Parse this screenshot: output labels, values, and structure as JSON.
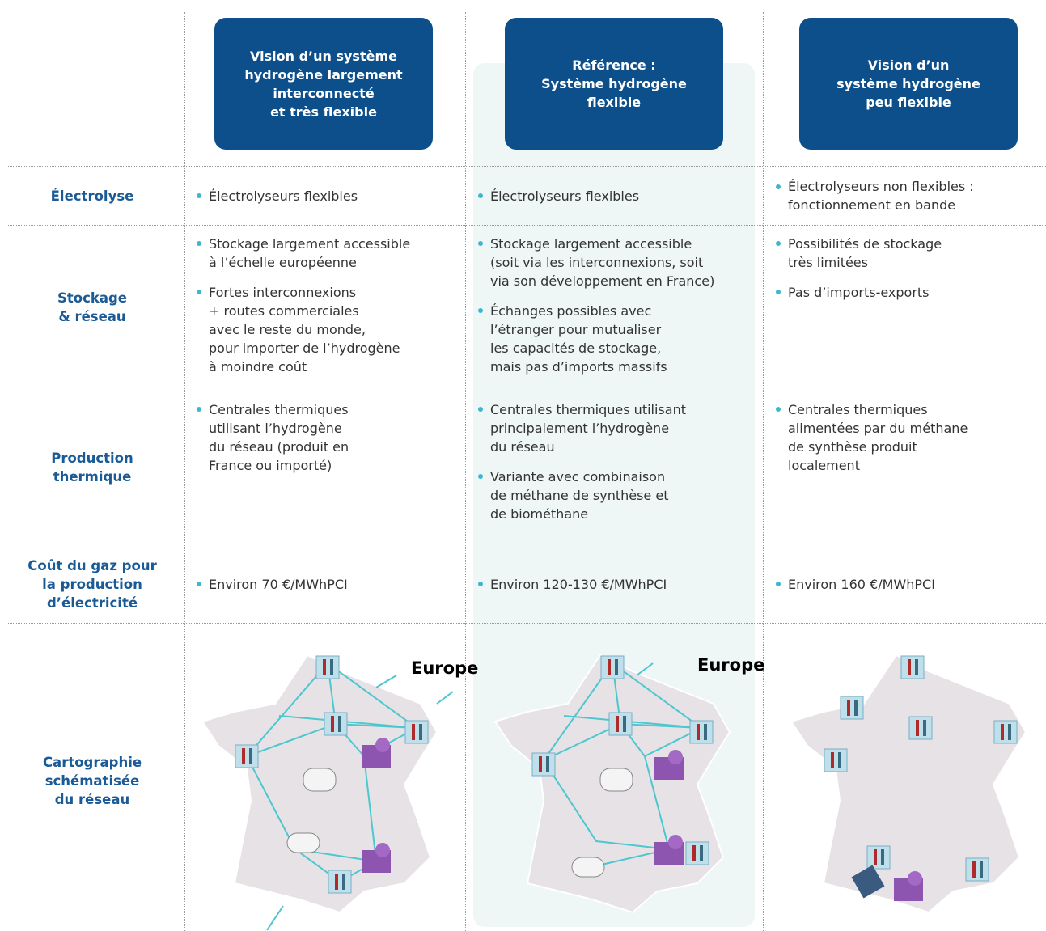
{
  "columns": [
    {
      "title": [
        "Vision d’un système",
        "hydrogène largement",
        "interconnecté",
        "et très flexible"
      ]
    },
    {
      "title": [
        "Référence :",
        "Système hydrogène",
        "flexible"
      ]
    },
    {
      "title": [
        "Vision d’un",
        "système hydrogène",
        "peu flexible"
      ]
    }
  ],
  "rows": [
    {
      "label": [
        "Électrolyse"
      ],
      "cells": [
        [
          [
            "Électrolyseurs flexibles"
          ]
        ],
        [
          [
            "Électrolyseurs flexibles"
          ]
        ],
        [
          [
            "Électrolyseurs non flexibles :",
            "fonctionnement en bande"
          ]
        ]
      ]
    },
    {
      "label": [
        "Stockage",
        "& réseau"
      ],
      "cells": [
        [
          [
            "Stockage largement accessible",
            "à l’échelle européenne"
          ],
          [
            "Fortes interconnexions",
            "+ routes commerciales",
            "avec le reste du monde,",
            "pour importer de l’hydrogène",
            "à moindre coût"
          ]
        ],
        [
          [
            "Stockage largement accessible",
            "(soit via les interconnexions, soit",
            "via son développement en France)"
          ],
          [
            "Échanges possibles avec",
            "l’étranger pour mutualiser",
            "les capacités de stockage,",
            "mais pas d’imports massifs"
          ]
        ],
        [
          [
            "Possibilités de stockage",
            "très limitées"
          ],
          [
            "Pas d’imports-exports"
          ]
        ]
      ]
    },
    {
      "label": [
        "Production",
        "thermique"
      ],
      "cells": [
        [
          [
            "Centrales thermiques",
            "utilisant l’hydrogène",
            "du réseau (produit en",
            "France ou importé)"
          ]
        ],
        [
          [
            "Centrales thermiques utilisant",
            "principalement l’hydrogène",
            "du réseau"
          ],
          [
            "Variante avec combinaison",
            "de méthane de synthèse et",
            "de biométhane"
          ]
        ],
        [
          [
            "Centrales thermiques",
            "alimentées par du méthane",
            "de synthèse produit",
            "localement"
          ]
        ]
      ]
    },
    {
      "label": [
        "Coût du gaz pour",
        "la production",
        "d’électricité"
      ],
      "cells": [
        [
          [
            "Environ 70 €/MWhPCI"
          ]
        ],
        [
          [
            "Environ 120-130 €/MWhPCI"
          ]
        ],
        [
          [
            "Environ 160 €/MWhPCI"
          ]
        ]
      ]
    },
    {
      "label": [
        "Cartographie",
        "schématisée",
        "du réseau"
      ],
      "cells": [
        [],
        [],
        []
      ]
    }
  ],
  "map_labels": [
    "Europe",
    "Europe"
  ]
}
